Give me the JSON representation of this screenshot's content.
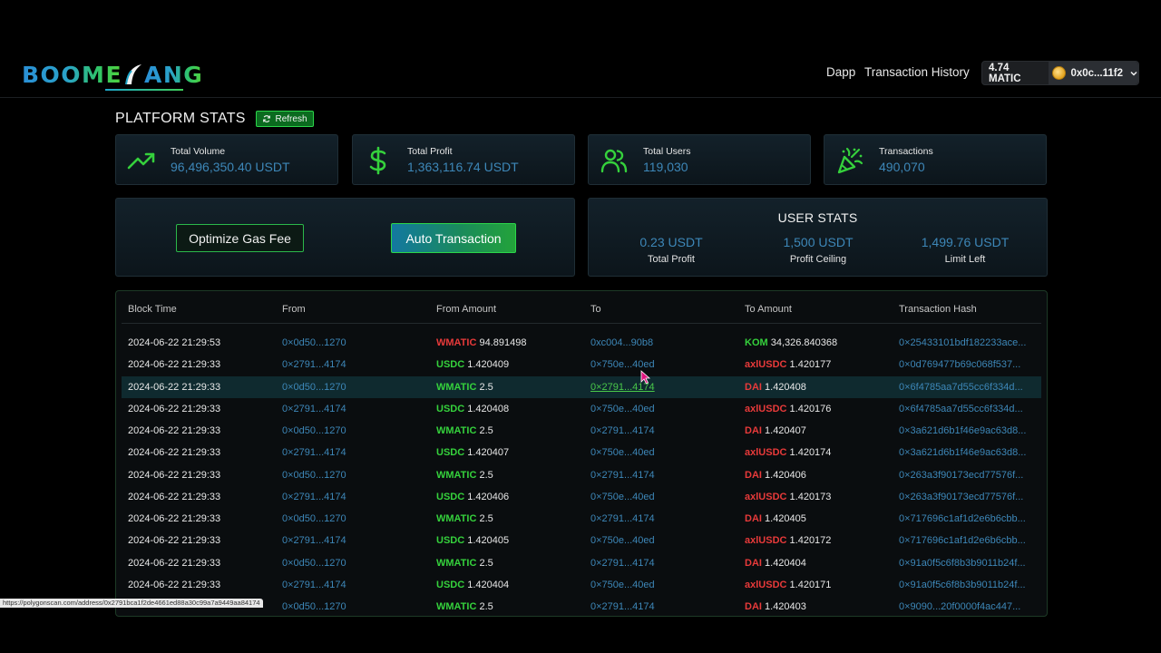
{
  "header": {
    "logo_text_left": "BOOME",
    "logo_text_right": "ANG",
    "nav": {
      "dapp": "Dapp",
      "history": "Transaction History"
    },
    "wallet": {
      "balance": "4.74 MATIC",
      "address": "0x0c...11f2"
    }
  },
  "platform": {
    "title": "PLATFORM STATS",
    "refresh_label": "Refresh",
    "stats": [
      {
        "label": "Total Volume",
        "value": "96,496,350.40 USDT",
        "icon": "trending-up-icon"
      },
      {
        "label": "Total Profit",
        "value": "1,363,116.74 USDT",
        "icon": "dollar-icon"
      },
      {
        "label": "Total Users",
        "value": "119,030",
        "icon": "users-icon"
      },
      {
        "label": "Transactions",
        "value": "490,070",
        "icon": "party-popper-icon"
      }
    ]
  },
  "actions": {
    "optimize": "Optimize Gas Fee",
    "auto": "Auto Transaction"
  },
  "user_stats": {
    "title": "USER STATS",
    "items": [
      {
        "value": "0.23 USDT",
        "label": "Total Profit"
      },
      {
        "value": "1,500 USDT",
        "label": "Profit Ceiling"
      },
      {
        "value": "1,499.76 USDT",
        "label": "Limit Left"
      }
    ]
  },
  "table": {
    "headers": [
      "Block Time",
      "From",
      "From Amount",
      "To",
      "To Amount",
      "Transaction Hash"
    ],
    "rows": [
      {
        "time": "2024-06-22 21:29:53",
        "from": "0×0d50...1270",
        "ftok": "WMATIC",
        "fc": "#e83a3a",
        "famt": "94.891498",
        "to": "0xc004...90b8",
        "ttok": "KOM",
        "tc": "#35d13c",
        "tamt": "34,326.840368",
        "hash": "0×25433101bdf182233ace..."
      },
      {
        "time": "2024-06-22 21:29:33",
        "from": "0×2791...4174",
        "ftok": "USDC",
        "fc": "#35d13c",
        "famt": "1.420409",
        "to": "0×750e...40ed",
        "ttok": "axlUSDC",
        "tc": "#e83a3a",
        "tamt": "1.420177",
        "hash": "0×0d769477b69c068f537..."
      },
      {
        "time": "2024-06-22 21:29:33",
        "from": "0×0d50...1270",
        "ftok": "WMATIC",
        "fc": "#35d13c",
        "famt": "2.5",
        "to": "0×2791...4174",
        "ttok": "DAI",
        "tc": "#e83a3a",
        "tamt": "1.420408",
        "hash": "0×6f4785aa7d55cc6f334d..."
      },
      {
        "time": "2024-06-22 21:29:33",
        "from": "0×2791...4174",
        "ftok": "USDC",
        "fc": "#35d13c",
        "famt": "1.420408",
        "to": "0×750e...40ed",
        "ttok": "axlUSDC",
        "tc": "#e83a3a",
        "tamt": "1.420176",
        "hash": "0×6f4785aa7d55cc6f334d..."
      },
      {
        "time": "2024-06-22 21:29:33",
        "from": "0×0d50...1270",
        "ftok": "WMATIC",
        "fc": "#35d13c",
        "famt": "2.5",
        "to": "0×2791...4174",
        "ttok": "DAI",
        "tc": "#e83a3a",
        "tamt": "1.420407",
        "hash": "0×3a621d6b1f46e9ac63d8..."
      },
      {
        "time": "2024-06-22 21:29:33",
        "from": "0×2791...4174",
        "ftok": "USDC",
        "fc": "#35d13c",
        "famt": "1.420407",
        "to": "0×750e...40ed",
        "ttok": "axlUSDC",
        "tc": "#e83a3a",
        "tamt": "1.420174",
        "hash": "0×3a621d6b1f46e9ac63d8..."
      },
      {
        "time": "2024-06-22 21:29:33",
        "from": "0×0d50...1270",
        "ftok": "WMATIC",
        "fc": "#35d13c",
        "famt": "2.5",
        "to": "0×2791...4174",
        "ttok": "DAI",
        "tc": "#e83a3a",
        "tamt": "1.420406",
        "hash": "0×263a3f90173ecd77576f..."
      },
      {
        "time": "2024-06-22 21:29:33",
        "from": "0×2791...4174",
        "ftok": "USDC",
        "fc": "#35d13c",
        "famt": "1.420406",
        "to": "0×750e...40ed",
        "ttok": "axlUSDC",
        "tc": "#e83a3a",
        "tamt": "1.420173",
        "hash": "0×263a3f90173ecd77576f..."
      },
      {
        "time": "2024-06-22 21:29:33",
        "from": "0×0d50...1270",
        "ftok": "WMATIC",
        "fc": "#35d13c",
        "famt": "2.5",
        "to": "0×2791...4174",
        "ttok": "DAI",
        "tc": "#e83a3a",
        "tamt": "1.420405",
        "hash": "0×717696c1af1d2e6b6cbb..."
      },
      {
        "time": "2024-06-22 21:29:33",
        "from": "0×2791...4174",
        "ftok": "USDC",
        "fc": "#35d13c",
        "famt": "1.420405",
        "to": "0×750e...40ed",
        "ttok": "axlUSDC",
        "tc": "#e83a3a",
        "tamt": "1.420172",
        "hash": "0×717696c1af1d2e6b6cbb..."
      },
      {
        "time": "2024-06-22 21:29:33",
        "from": "0×0d50...1270",
        "ftok": "WMATIC",
        "fc": "#35d13c",
        "famt": "2.5",
        "to": "0×2791...4174",
        "ttok": "DAI",
        "tc": "#e83a3a",
        "tamt": "1.420404",
        "hash": "0×91a0f5c6f8b3b9011b24f..."
      },
      {
        "time": "2024-06-22 21:29:33",
        "from": "0×2791...4174",
        "ftok": "USDC",
        "fc": "#35d13c",
        "famt": "1.420404",
        "to": "0×750e...40ed",
        "ttok": "axlUSDC",
        "tc": "#e83a3a",
        "tamt": "1.420171",
        "hash": "0×91a0f5c6f8b3b9011b24f..."
      },
      {
        "time": "",
        "from": "0×0d50...1270",
        "ftok": "WMATIC",
        "fc": "#35d13c",
        "famt": "2.5",
        "to": "0×2791...4174",
        "ttok": "DAI",
        "tc": "#e83a3a",
        "tamt": "1.420403",
        "hash": "0×9090...20f0000f4ac447..."
      }
    ],
    "highlight_row": 2
  },
  "status_url": "https://polygonscan.com/address/0x2791bca1f2de4661ed88a30c99a7a9449aa84174",
  "colors": {
    "accent_green": "#2bd64a",
    "link_blue": "#3d87b8",
    "token_red": "#e83a3a"
  }
}
